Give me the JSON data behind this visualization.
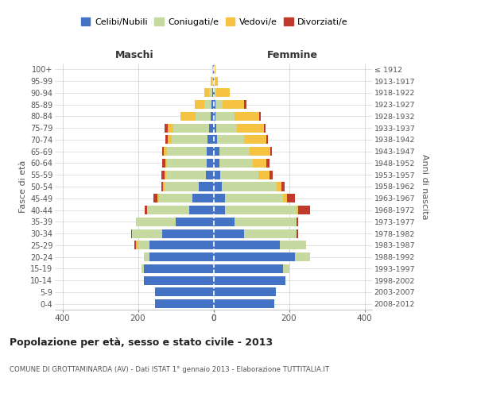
{
  "age_groups": [
    "0-4",
    "5-9",
    "10-14",
    "15-19",
    "20-24",
    "25-29",
    "30-34",
    "35-39",
    "40-44",
    "45-49",
    "50-54",
    "55-59",
    "60-64",
    "65-69",
    "70-74",
    "75-79",
    "80-84",
    "85-89",
    "90-94",
    "95-99",
    "100+"
  ],
  "birth_years": [
    "2008-2012",
    "2003-2007",
    "1998-2002",
    "1993-1997",
    "1988-1992",
    "1983-1987",
    "1978-1982",
    "1973-1977",
    "1968-1972",
    "1963-1967",
    "1958-1962",
    "1953-1957",
    "1948-1952",
    "1943-1947",
    "1938-1942",
    "1933-1937",
    "1928-1932",
    "1923-1927",
    "1918-1922",
    "1913-1917",
    "≤ 1912"
  ],
  "maschi": {
    "celibi": [
      155,
      155,
      185,
      185,
      170,
      170,
      135,
      100,
      65,
      55,
      40,
      20,
      18,
      18,
      15,
      12,
      8,
      5,
      4,
      2,
      2
    ],
    "coniugati": [
      0,
      0,
      0,
      5,
      15,
      30,
      80,
      105,
      110,
      90,
      90,
      105,
      105,
      105,
      95,
      95,
      40,
      20,
      8,
      2,
      2
    ],
    "vedovi": [
      0,
      0,
      0,
      0,
      0,
      5,
      0,
      0,
      0,
      3,
      3,
      5,
      5,
      8,
      12,
      15,
      40,
      25,
      12,
      3,
      0
    ],
    "divorziati": [
      0,
      0,
      0,
      0,
      0,
      5,
      3,
      0,
      8,
      12,
      5,
      8,
      8,
      5,
      5,
      8,
      0,
      0,
      0,
      0,
      0
    ]
  },
  "femmine": {
    "nubili": [
      162,
      165,
      190,
      185,
      215,
      175,
      80,
      55,
      30,
      30,
      22,
      18,
      15,
      15,
      10,
      8,
      5,
      5,
      3,
      2,
      2
    ],
    "coniugate": [
      0,
      0,
      0,
      15,
      40,
      70,
      140,
      165,
      190,
      155,
      145,
      100,
      90,
      80,
      70,
      55,
      50,
      20,
      5,
      2,
      2
    ],
    "vedove": [
      0,
      0,
      0,
      0,
      0,
      0,
      0,
      0,
      5,
      10,
      12,
      30,
      35,
      55,
      60,
      70,
      65,
      55,
      35,
      8,
      2
    ],
    "divorziate": [
      0,
      0,
      0,
      0,
      0,
      0,
      5,
      5,
      30,
      20,
      10,
      8,
      8,
      5,
      5,
      5,
      5,
      8,
      0,
      0,
      0
    ]
  },
  "colors": {
    "celibi": "#4472c4",
    "coniugati": "#c5d9a0",
    "vedovi": "#f5c242",
    "divorziati": "#c0392b"
  },
  "legend_labels": [
    "Celibi/Nubili",
    "Coniugati/e",
    "Vedovi/e",
    "Divorziati/e"
  ],
  "title": "Popolazione per età, sesso e stato civile - 2013",
  "subtitle": "COMUNE DI GROTTAMINARDA (AV) - Dati ISTAT 1° gennaio 2013 - Elaborazione TUTTITALIA.IT",
  "ylabel_left": "Fasce di età",
  "ylabel_right": "Anni di nascita",
  "xlabel_left": "Maschi",
  "xlabel_right": "Femmine",
  "xlim": 420,
  "background_color": "#ffffff",
  "grid_color": "#cccccc"
}
